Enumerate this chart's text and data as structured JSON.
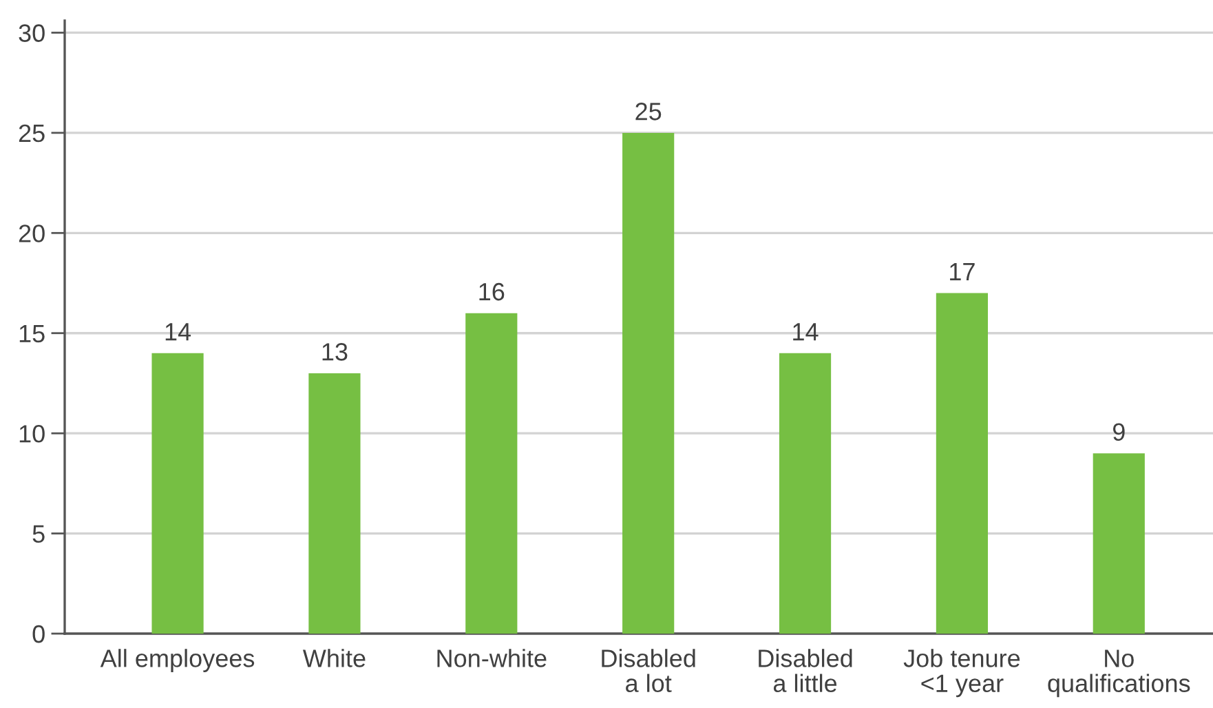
{
  "chart_data": {
    "type": "bar",
    "categories": [
      "All employees",
      "White",
      "Non-white",
      "Disabled\na lot",
      "Disabled\na little",
      "Job tenure\n<1 year",
      "No\nqualifications"
    ],
    "values": [
      14,
      13,
      16,
      25,
      14,
      17,
      9
    ],
    "color": "#76bf43",
    "ylim": [
      0,
      30.6
    ],
    "yticks": [
      0,
      5,
      10,
      15,
      20,
      25,
      30
    ],
    "grid": "y",
    "data_labels": true
  }
}
